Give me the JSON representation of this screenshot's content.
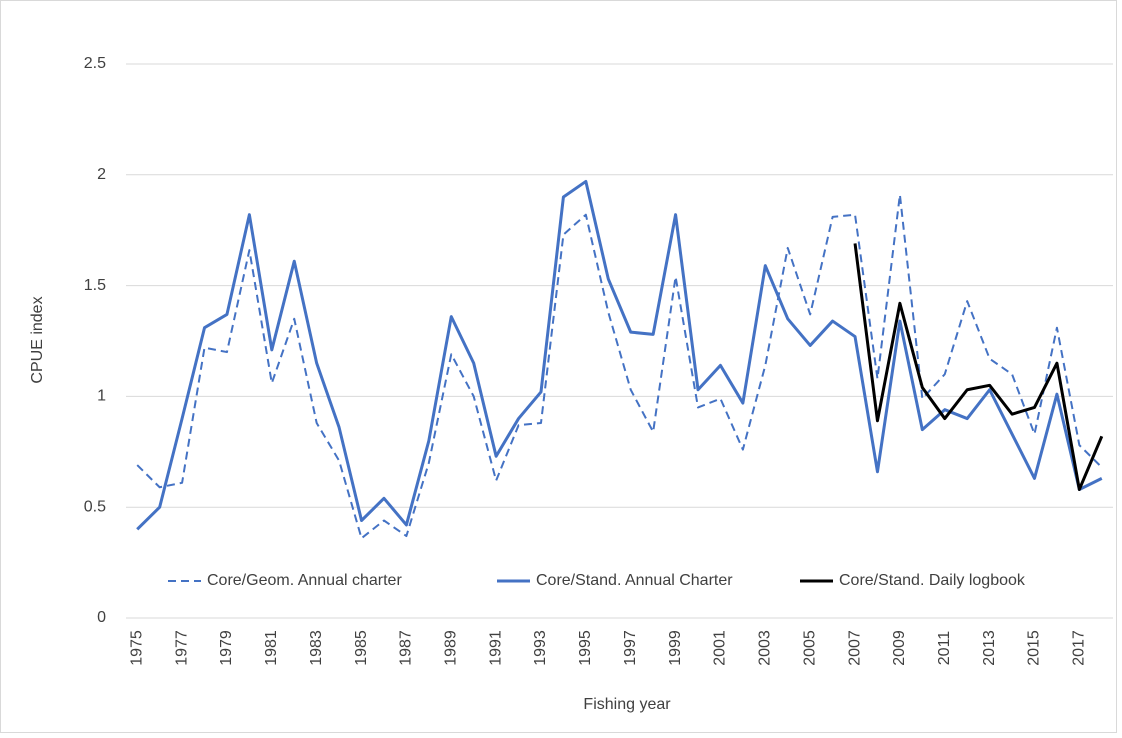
{
  "chart_data": {
    "type": "line",
    "x_label": "Fishing year",
    "y_label": "CPUE index",
    "x": [
      1975,
      1976,
      1977,
      1978,
      1979,
      1980,
      1981,
      1982,
      1983,
      1984,
      1985,
      1986,
      1987,
      1988,
      1989,
      1990,
      1991,
      1992,
      1993,
      1994,
      1995,
      1996,
      1997,
      1998,
      1999,
      2000,
      2001,
      2002,
      2003,
      2004,
      2005,
      2006,
      2007,
      2008,
      2009,
      2010,
      2011,
      2012,
      2013,
      2014,
      2015,
      2016,
      2017,
      2018
    ],
    "xlim": [
      1974.5,
      2018.5
    ],
    "xticks": [
      1975,
      1977,
      1979,
      1981,
      1983,
      1985,
      1987,
      1989,
      1991,
      1993,
      1995,
      1997,
      1999,
      2001,
      2003,
      2005,
      2007,
      2009,
      2011,
      2013,
      2015,
      2017
    ],
    "ylim": [
      0,
      2.5
    ],
    "yticks": [
      0,
      0.5,
      1,
      1.5,
      2,
      2.5
    ],
    "grid": true,
    "legend": "bottom",
    "series": [
      {
        "name": "Core/Geom. Annual charter",
        "color": "#4472c4",
        "style": "dashed",
        "values": [
          0.69,
          0.59,
          0.61,
          1.22,
          1.2,
          1.66,
          1.06,
          1.35,
          0.88,
          0.71,
          0.36,
          0.44,
          0.37,
          0.7,
          1.19,
          1.0,
          0.62,
          0.87,
          0.88,
          1.73,
          1.82,
          1.38,
          1.03,
          0.84,
          1.54,
          0.95,
          0.99,
          0.76,
          1.14,
          1.67,
          1.37,
          1.81,
          1.82,
          1.08,
          1.91,
          0.99,
          1.1,
          1.43,
          1.17,
          1.1,
          0.83,
          1.31,
          0.78,
          0.68
        ]
      },
      {
        "name": "Core/Stand. Annual Charter",
        "color": "#4472c4",
        "style": "solid",
        "values": [
          0.4,
          0.5,
          0.9,
          1.31,
          1.37,
          1.82,
          1.21,
          1.61,
          1.15,
          0.86,
          0.44,
          0.54,
          0.42,
          0.8,
          1.36,
          1.15,
          0.73,
          0.9,
          1.02,
          1.9,
          1.97,
          1.53,
          1.29,
          1.28,
          1.82,
          1.03,
          1.14,
          0.97,
          1.59,
          1.35,
          1.23,
          1.34,
          1.27,
          0.66,
          1.34,
          0.85,
          0.94,
          0.9,
          1.03,
          0.83,
          0.63,
          1.01,
          0.58,
          0.63
        ]
      },
      {
        "name": "Core/Stand. Daily logbook",
        "color": "#000000",
        "style": "solid",
        "values": [
          null,
          null,
          null,
          null,
          null,
          null,
          null,
          null,
          null,
          null,
          null,
          null,
          null,
          null,
          null,
          null,
          null,
          null,
          null,
          null,
          null,
          null,
          null,
          null,
          null,
          null,
          null,
          null,
          null,
          null,
          null,
          null,
          1.69,
          0.89,
          1.42,
          1.04,
          0.9,
          1.03,
          1.05,
          0.92,
          0.95,
          1.15,
          0.58,
          0.82
        ]
      }
    ]
  }
}
